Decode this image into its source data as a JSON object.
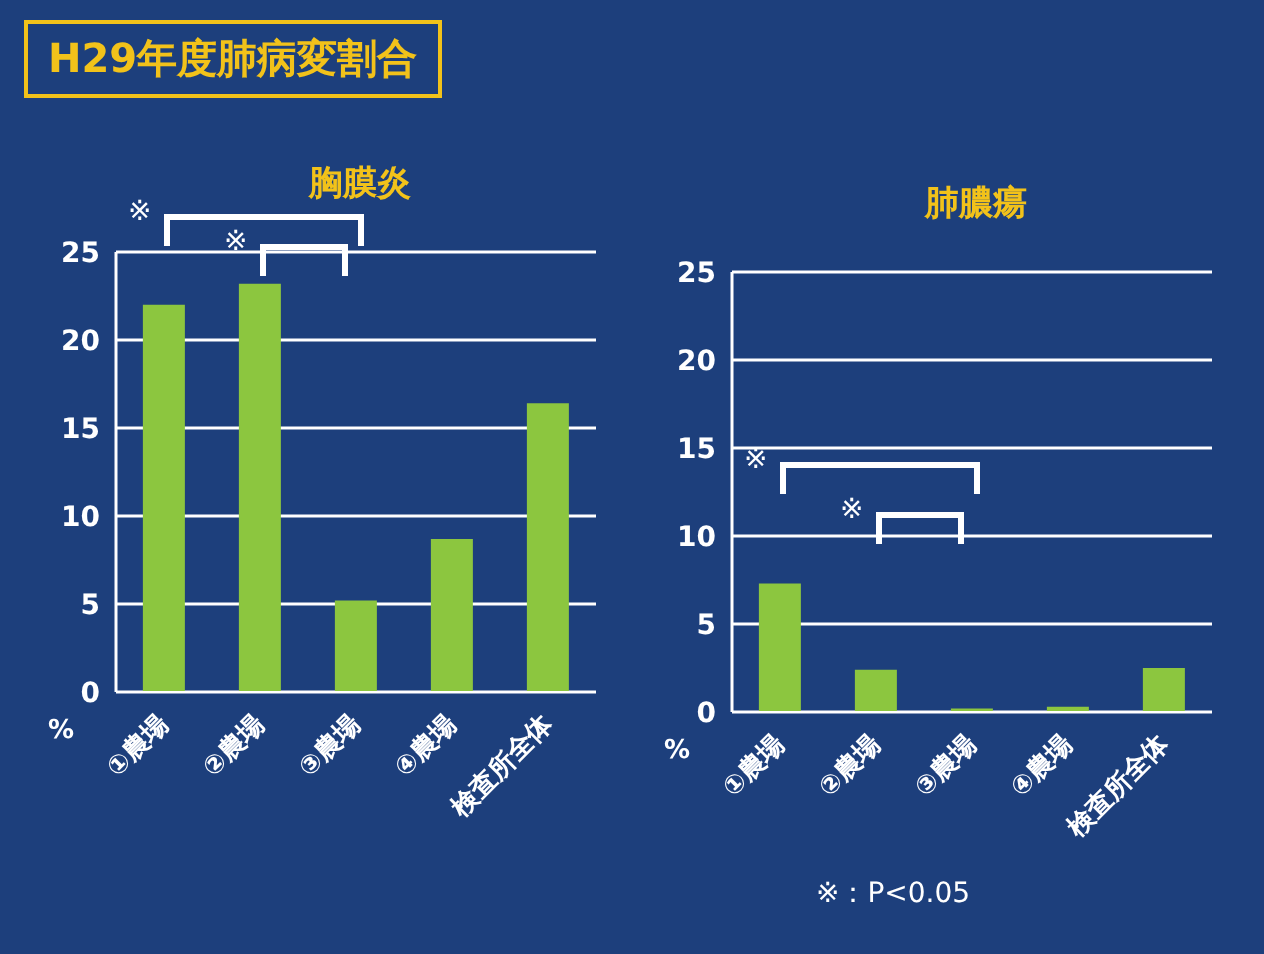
{
  "chart_data": [
    {
      "type": "other",
      "title": "H29年度肺病変割合"
    },
    {
      "type": "bar",
      "title": "胸膜炎",
      "ylabel": "%",
      "categories": [
        "①農場",
        "②農場",
        "③農場",
        "④農場",
        "検査所全体"
      ],
      "values": [
        22,
        23.2,
        5.2,
        8.7,
        16.4
      ],
      "color": "#8cc63f",
      "ylim": [
        0,
        25
      ],
      "yticks": [
        0,
        5,
        10,
        15,
        20,
        25
      ],
      "grid": "y",
      "annotations": [
        "※",
        "※"
      ]
    },
    {
      "type": "bar",
      "title": "肺膿瘍",
      "ylabel": "%",
      "categories": [
        "①農場",
        "②農場",
        "③農場",
        "④農場",
        "検査所全体"
      ],
      "values": [
        7.3,
        2.4,
        0.2,
        0.3,
        2.5
      ],
      "color": "#8cc63f",
      "ylim": [
        0,
        25
      ],
      "yticks": [
        0,
        5,
        10,
        15,
        20,
        25
      ],
      "grid": "y",
      "annotations": [
        "※",
        "※",
        "※：P<0.05"
      ]
    }
  ]
}
